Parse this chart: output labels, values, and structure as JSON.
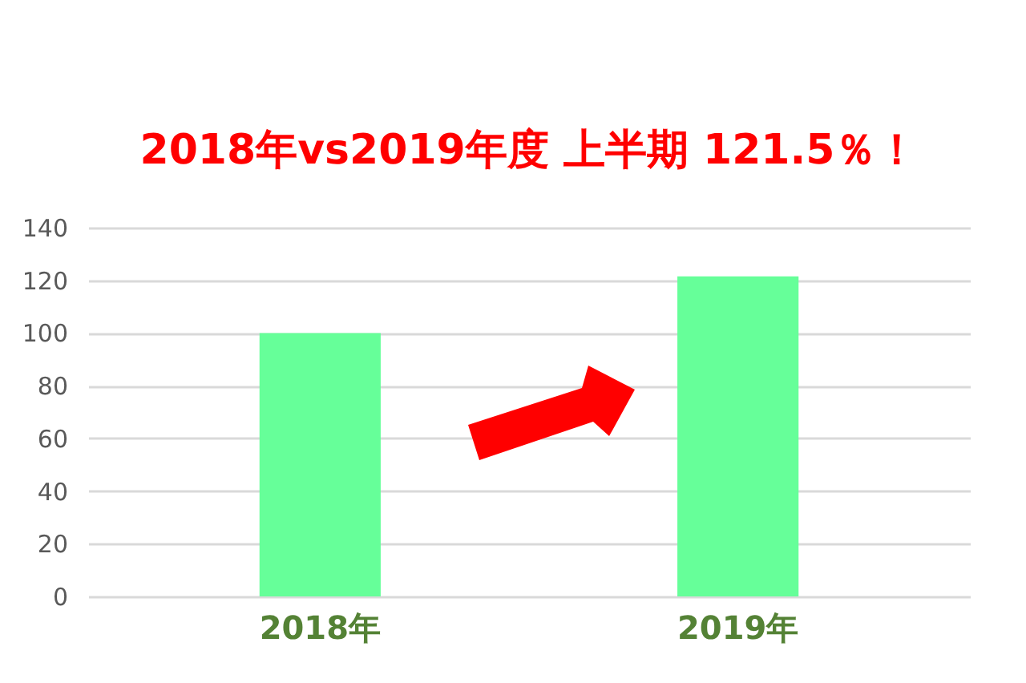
{
  "chart_data": {
    "type": "bar",
    "title": "2018年vs2019年度 上半期 121.5％！",
    "categories": [
      "2018年",
      "2019年"
    ],
    "values": [
      100,
      121.5
    ],
    "color": "#66ff99",
    "ylim": [
      0,
      140
    ],
    "yticks": [
      0,
      20,
      40,
      60,
      80,
      100,
      120,
      140
    ],
    "grid": "y"
  }
}
